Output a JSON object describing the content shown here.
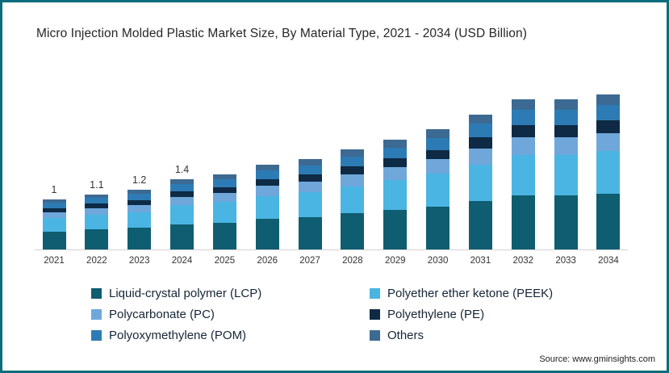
{
  "title": "Micro Injection Molded Plastic Market Size, By Material Type, 2021 - 2034 (USD Billion)",
  "source": "Source: www.gminsights.com",
  "frame": {
    "border_color": "#0b6c7c",
    "background": "#ffffff"
  },
  "chart_data": {
    "type": "bar",
    "stacked": true,
    "title": "Micro Injection Molded Plastic Market Size, By Material Type, 2021 - 2034 (USD Billion)",
    "xlabel": "",
    "ylabel": "USD Billion",
    "ylim": [
      0,
      3.4
    ],
    "grid": false,
    "legend_position": "bottom",
    "categories": [
      "2021",
      "2022",
      "2023",
      "2024",
      "2025",
      "2026",
      "2027",
      "2028",
      "2029",
      "2030",
      "2031",
      "2032",
      "2033",
      "2034"
    ],
    "totals": [
      1.0,
      1.1,
      1.2,
      1.4,
      1.5,
      1.7,
      1.8,
      2.0,
      2.2,
      2.4,
      2.7,
      3.0,
      3.0,
      3.1
    ],
    "data_labels": [
      "1",
      "1.1",
      "1.2",
      "1.4",
      "",
      "",
      "",
      "",
      "",
      "",
      "",
      "",
      "",
      ""
    ],
    "series": [
      {
        "name": "Liquid-crystal polymer (LCP)",
        "color": "#0f5d70",
        "values": [
          0.36,
          0.4,
          0.43,
          0.5,
          0.54,
          0.61,
          0.65,
          0.72,
          0.79,
          0.86,
          0.97,
          1.08,
          1.08,
          1.12
        ]
      },
      {
        "name": "Polyether ether ketone (PEEK)",
        "color": "#4ab5e2",
        "values": [
          0.27,
          0.3,
          0.32,
          0.38,
          0.41,
          0.46,
          0.49,
          0.54,
          0.59,
          0.65,
          0.73,
          0.81,
          0.81,
          0.84
        ]
      },
      {
        "name": "Polycarbonate (PC)",
        "color": "#6fa7da",
        "values": [
          0.12,
          0.13,
          0.14,
          0.17,
          0.18,
          0.2,
          0.22,
          0.24,
          0.26,
          0.29,
          0.32,
          0.36,
          0.36,
          0.37
        ]
      },
      {
        "name": "Polyethylene (PE)",
        "color": "#0e2a44",
        "values": [
          0.08,
          0.09,
          0.1,
          0.11,
          0.12,
          0.14,
          0.14,
          0.16,
          0.18,
          0.19,
          0.22,
          0.24,
          0.24,
          0.25
        ]
      },
      {
        "name": "Polyoxymethylene (POM)",
        "color": "#2d7bb4",
        "values": [
          0.1,
          0.11,
          0.12,
          0.14,
          0.15,
          0.17,
          0.18,
          0.2,
          0.22,
          0.24,
          0.27,
          0.3,
          0.3,
          0.31
        ]
      },
      {
        "name": "Others",
        "color": "#3d6a92",
        "values": [
          0.07,
          0.07,
          0.09,
          0.1,
          0.1,
          0.12,
          0.12,
          0.14,
          0.16,
          0.17,
          0.19,
          0.21,
          0.21,
          0.21
        ]
      }
    ]
  }
}
